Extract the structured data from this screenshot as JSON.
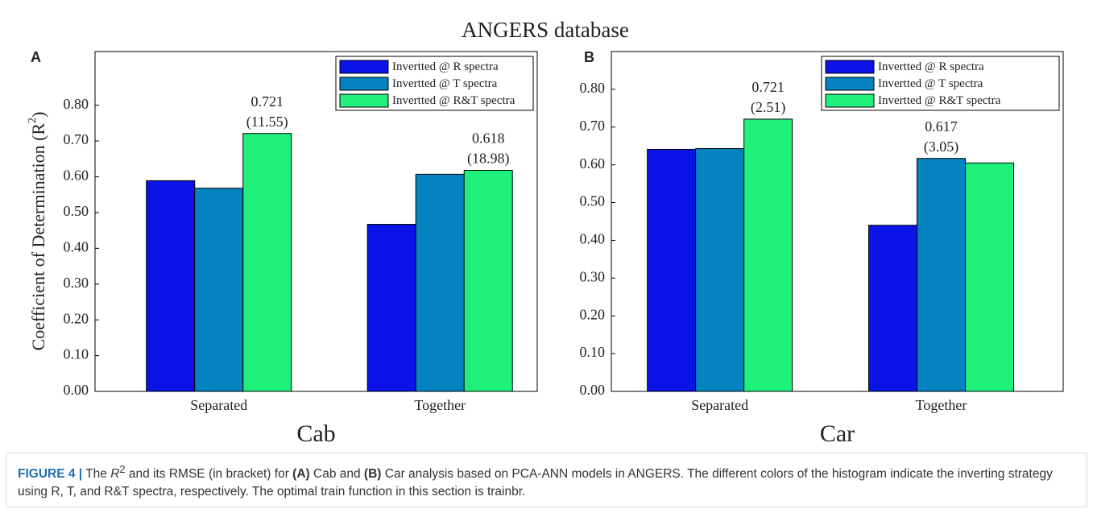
{
  "figure_title": "ANGERS database",
  "chart_data": [
    {
      "type": "bar",
      "panel": "A",
      "xlabel": "Cab",
      "ylabel": {
        "text": "Coefficient of Determination (R",
        "sup": "2",
        "end": ")"
      },
      "categories": [
        "Separated",
        "Together"
      ],
      "series": [
        {
          "name": "Invertted @ R spectra",
          "color": "#0a14e8",
          "values": [
            0.589,
            0.467
          ]
        },
        {
          "name": "Invertted @ T spectra",
          "color": "#0582c0",
          "values": [
            0.568,
            0.607
          ]
        },
        {
          "name": "Invertted @ R&T spectra",
          "color": "#1ef07a",
          "values": [
            0.721,
            0.618
          ],
          "value_labels": [
            "0.721",
            "0.618"
          ],
          "rmse_labels": [
            "(11.55)",
            "(18.98)"
          ]
        }
      ],
      "ylim": [
        0,
        0.95
      ],
      "yticks": [
        {
          "value": 0,
          "label": "0.00"
        },
        {
          "value": 0.1,
          "label": "0.10"
        },
        {
          "value": 0.2,
          "label": "0.20"
        },
        {
          "value": 0.3,
          "label": "0.30"
        },
        {
          "value": 0.4,
          "label": "0.40"
        },
        {
          "value": 0.5,
          "label": "0.50"
        },
        {
          "value": 0.6,
          "label": "0.60"
        },
        {
          "value": 0.7,
          "label": "0.70"
        },
        {
          "value": 0.8,
          "label": "0.80"
        }
      ],
      "legend": "upper right"
    },
    {
      "type": "bar",
      "panel": "B",
      "xlabel": "Car",
      "categories": [
        "Separated",
        "Together"
      ],
      "series": [
        {
          "name": "Invertted @ R spectra",
          "color": "#0a14e8",
          "values": [
            0.641,
            0.44
          ]
        },
        {
          "name": "Invertted @ T spectra",
          "color": "#0582c0",
          "values": [
            0.643,
            0.617
          ],
          "value_labels": [
            null,
            "0.617"
          ],
          "rmse_labels": [
            null,
            "(3.05)"
          ]
        },
        {
          "name": "Invertted @ R&T spectra",
          "color": "#1ef07a",
          "values": [
            0.721,
            0.605
          ],
          "value_labels": [
            "0.721",
            null
          ],
          "rmse_labels": [
            "(2.51)",
            null
          ]
        }
      ],
      "ylim": [
        0,
        0.9
      ],
      "yticks": [
        {
          "value": 0,
          "label": "0.00"
        },
        {
          "value": 0.1,
          "label": "0.10"
        },
        {
          "value": 0.2,
          "label": "0.20"
        },
        {
          "value": 0.3,
          "label": "0.30"
        },
        {
          "value": 0.4,
          "label": "0.40"
        },
        {
          "value": 0.5,
          "label": "0.50"
        },
        {
          "value": 0.6,
          "label": "0.60"
        },
        {
          "value": 0.7,
          "label": "0.70"
        },
        {
          "value": 0.8,
          "label": "0.80"
        }
      ],
      "legend": "upper right"
    }
  ],
  "caption": [
    "FIGURE 4 |",
    " The ",
    "R",
    "2",
    " and its RMSE (in bracket) for ",
    "(A)",
    " Cab and ",
    "(B)",
    " Car analysis based on PCA-ANN models in ANGERS. The different colors of the histogram indicate the inverting strategy using R, T, and R&T spectra, respectively. The optimal train function in this section is trainbr."
  ]
}
